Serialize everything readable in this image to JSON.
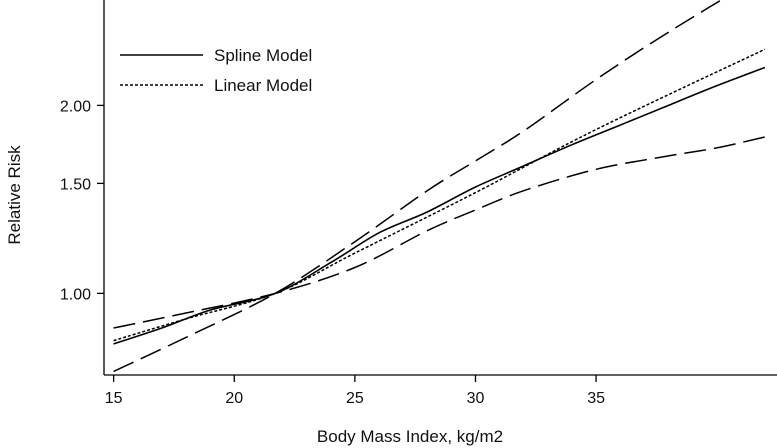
{
  "chart_data": {
    "type": "line",
    "title": "",
    "xlabel": "Body Mass Index, kg/m2",
    "ylabel": "Relative Risk",
    "x_ticks": [
      15,
      20,
      25,
      30,
      35
    ],
    "x_tick_labels": [
      "15",
      "20",
      "25",
      "30",
      "35"
    ],
    "y_ticks": [
      1.0,
      1.5,
      2.0
    ],
    "y_tick_labels": [
      "1.00",
      "1.50",
      "2.00"
    ],
    "xlim": [
      14.6,
      42.5
    ],
    "ylim": [
      0.74,
      2.95
    ],
    "y_scale": "log",
    "grid": false,
    "legend_position": "top-left",
    "legend": [
      {
        "name": "Spline Model",
        "style": "solid"
      },
      {
        "name": "Linear Model",
        "style": "dotted"
      }
    ],
    "series": [
      {
        "name": "Spline Model",
        "style": "solid",
        "x": [
          15,
          17,
          19,
          21.7,
          24,
          26,
          28,
          30,
          32,
          34,
          36,
          38,
          40,
          42
        ],
        "y": [
          0.83,
          0.88,
          0.94,
          1.0,
          1.12,
          1.25,
          1.35,
          1.48,
          1.6,
          1.73,
          1.86,
          2.0,
          2.15,
          2.3
        ]
      },
      {
        "name": "Linear Model",
        "style": "dotted",
        "x": [
          15,
          18,
          21.7,
          25,
          30,
          35,
          42
        ],
        "y": [
          0.84,
          0.91,
          1.0,
          1.16,
          1.45,
          1.83,
          2.46
        ]
      },
      {
        "name": "",
        "style": "dashed",
        "x": [
          15,
          18,
          21.7,
          25,
          28,
          30,
          32,
          35,
          38,
          42
        ],
        "y": [
          0.75,
          0.85,
          1.0,
          1.21,
          1.46,
          1.63,
          1.82,
          2.2,
          2.62,
          3.25
        ]
      },
      {
        "name": "",
        "style": "dashed",
        "x": [
          15,
          18,
          21.7,
          25,
          28,
          30,
          32,
          35,
          38,
          40,
          42
        ],
        "y": [
          0.88,
          0.93,
          1.0,
          1.1,
          1.26,
          1.36,
          1.46,
          1.58,
          1.66,
          1.71,
          1.78
        ]
      }
    ]
  }
}
